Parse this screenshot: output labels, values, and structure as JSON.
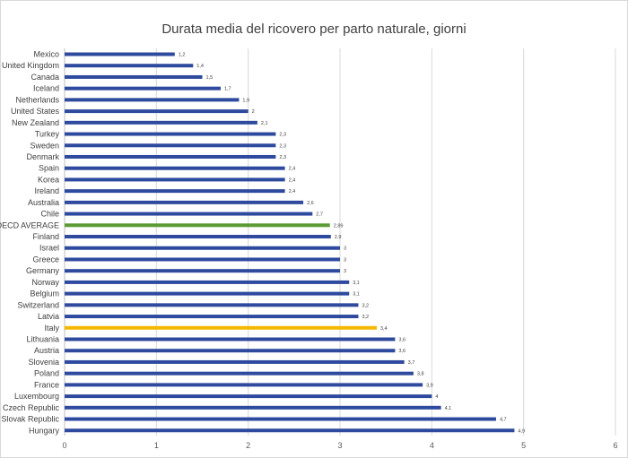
{
  "chart_data": {
    "type": "bar",
    "orientation": "horizontal",
    "title": "Durata media del ricovero per  parto naturale, giorni",
    "categories": [
      "Mexico",
      "United Kingdom",
      "Canada",
      "Iceland",
      "Netherlands",
      "United States",
      "New Zealand",
      "Turkey",
      "Sweden",
      "Denmark",
      "Spain",
      "Korea",
      "Ireland",
      "Australia",
      "Chile",
      "OECD AVERAGE",
      "Finland",
      "Israel",
      "Greece",
      "Germany",
      "Norway",
      "Belgium",
      "Switzerland",
      "Latvia",
      "Italy",
      "Lithuania",
      "Austria",
      "Slovenia",
      "Poland",
      "France",
      "Luxembourg",
      "Czech Republic",
      "Slovak Republic",
      "Hungary"
    ],
    "values": [
      1.2,
      1.4,
      1.5,
      1.7,
      1.9,
      2,
      2.1,
      2.3,
      2.3,
      2.3,
      2.4,
      2.4,
      2.4,
      2.6,
      2.7,
      2.89,
      2.9,
      3,
      3,
      3,
      3.1,
      3.1,
      3.2,
      3.2,
      3.4,
      3.6,
      3.6,
      3.7,
      3.8,
      3.9,
      4,
      4.1,
      4.7,
      4.9
    ],
    "data_labels": [
      "1,2",
      "1,4",
      "1,5",
      "1,7",
      "1,9",
      "2",
      "2,1",
      "2,3",
      "2,3",
      "2,3",
      "2,4",
      "2,4",
      "2,4",
      "2,6",
      "2,7",
      "2,89",
      "2,9",
      "3",
      "3",
      "3",
      "3,1",
      "3,1",
      "3,2",
      "3,2",
      "3,4",
      "3,6",
      "3,6",
      "3,7",
      "3,8",
      "3,9",
      "4",
      "4,1",
      "4,7",
      "4,9"
    ],
    "xlim": [
      0,
      6
    ],
    "xticks": [
      "0",
      "1",
      "2",
      "3",
      "4",
      "5",
      "6"
    ],
    "grid": true,
    "legend": "none",
    "colors": {
      "default": "#2e4a9e",
      "OECD AVERAGE": "#5b9b35",
      "Italy": "#f5b800",
      "grid": "#d9d9d9",
      "axis": "#bfbfbf"
    }
  }
}
